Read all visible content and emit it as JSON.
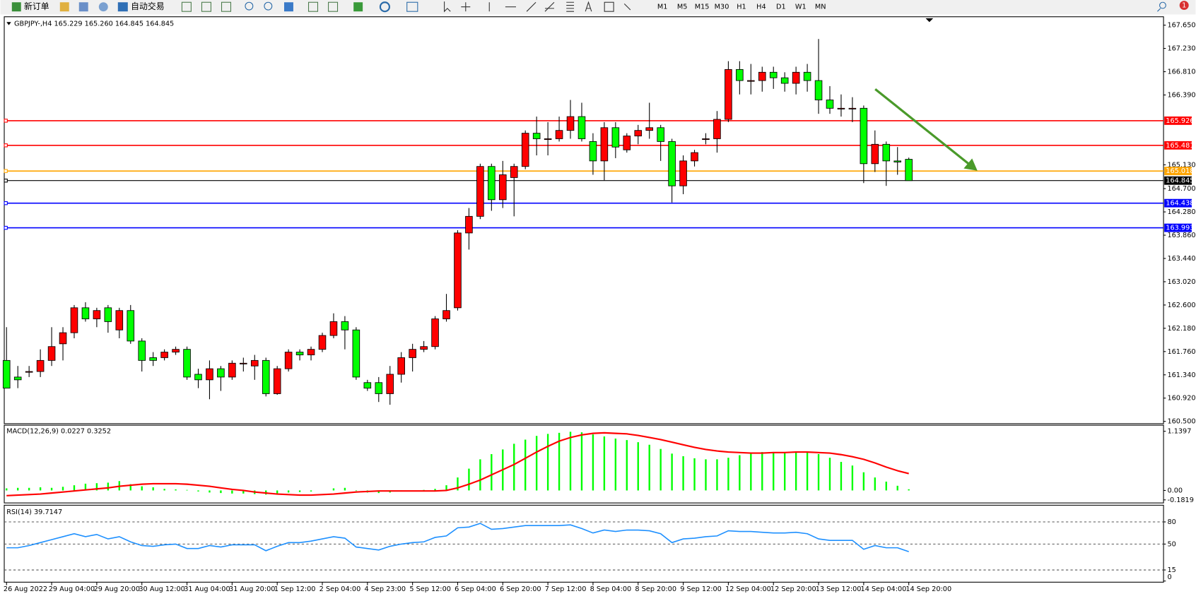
{
  "toolbar": {
    "new_order": "新订单",
    "auto_trading": "自动交易",
    "timeframes": [
      "M1",
      "M5",
      "M15",
      "M30",
      "H1",
      "H4",
      "D1",
      "W1",
      "MN"
    ],
    "badge": "1"
  },
  "chart_data": [
    {
      "type": "candlestick",
      "title": "GBPJPY-,H4  165.229 165.260 164.845 164.845",
      "up_color": "#ff0000",
      "down_color": "#00ff00",
      "categories": [
        "26 Aug 2022",
        null,
        null,
        null,
        "29 Aug 04:00",
        null,
        null,
        null,
        "29 Aug 20:00",
        null,
        null,
        null,
        "30 Aug 12:00",
        null,
        null,
        null,
        "31 Aug 04:00",
        null,
        null,
        null,
        "31 Aug 20:00",
        null,
        null,
        null,
        "1 Sep 12:00",
        null,
        null,
        null,
        "2 Sep 04:00",
        null,
        null,
        null,
        "4 Sep 23:00",
        null,
        null,
        null,
        "5 Sep 12:00",
        null,
        null,
        null,
        "6 Sep 04:00",
        null,
        null,
        null,
        "6 Sep 20:00",
        null,
        null,
        null,
        "7 Sep 12:00",
        null,
        null,
        null,
        "8 Sep 04:00",
        null,
        null,
        null,
        "8 Sep 20:00",
        null,
        null,
        null,
        "9 Sep 12:00",
        null,
        null,
        null,
        "12 Sep 04:00",
        null,
        null,
        null,
        "12 Sep 20:00",
        null,
        null,
        null,
        "13 Sep 12:00",
        null,
        null,
        null,
        "14 Sep 04:00",
        null,
        null,
        null,
        "14 Sep 20:00"
      ],
      "open": [
        161.6,
        161.3,
        161.4,
        161.4,
        161.6,
        161.9,
        162.1,
        162.55,
        162.35,
        162.55,
        162.15,
        162.5,
        161.95,
        161.65,
        161.65,
        161.75,
        161.8,
        161.35,
        161.25,
        161.45,
        161.3,
        161.55,
        161.5,
        161.6,
        161.0,
        161.45,
        161.75,
        161.7,
        161.8,
        162.05,
        162.3,
        162.15,
        161.2,
        161.2,
        161.0,
        161.35,
        161.65,
        161.8,
        161.85,
        162.35,
        162.55,
        163.9,
        164.2,
        165.1,
        164.5,
        164.9,
        165.1,
        165.7,
        165.6,
        165.6,
        165.75,
        166.0,
        165.55,
        165.2,
        165.8,
        165.4,
        165.65,
        165.75,
        165.8,
        165.55,
        164.75,
        165.2,
        165.6,
        165.6,
        165.95,
        166.85,
        166.65,
        166.65,
        166.8,
        166.7,
        166.6,
        166.8,
        166.65,
        166.3,
        166.15,
        166.15,
        166.15,
        165.15,
        165.5,
        165.2,
        165.229
      ],
      "high": [
        162.2,
        161.5,
        161.5,
        161.8,
        162.2,
        162.2,
        162.6,
        162.65,
        162.55,
        162.6,
        162.55,
        162.6,
        162.0,
        161.75,
        161.8,
        161.85,
        161.85,
        161.45,
        161.6,
        161.5,
        161.6,
        161.65,
        161.7,
        161.65,
        161.5,
        161.8,
        161.8,
        161.85,
        162.1,
        162.45,
        162.4,
        162.2,
        161.25,
        161.3,
        161.5,
        161.75,
        161.9,
        161.95,
        162.4,
        162.8,
        163.95,
        164.35,
        165.15,
        165.15,
        165.2,
        165.15,
        165.75,
        166.0,
        165.9,
        166.0,
        166.3,
        166.25,
        165.7,
        165.9,
        165.9,
        165.7,
        165.85,
        166.25,
        165.85,
        165.6,
        165.3,
        165.4,
        165.7,
        166.1,
        167.0,
        167.0,
        166.95,
        166.9,
        166.9,
        166.8,
        166.9,
        166.95,
        167.4,
        166.55,
        166.4,
        166.35,
        166.2,
        165.75,
        165.55,
        165.45,
        165.26
      ],
      "low": [
        161.1,
        161.1,
        161.3,
        161.3,
        161.5,
        161.6,
        162.0,
        162.3,
        162.2,
        162.1,
        162.0,
        161.9,
        161.4,
        161.5,
        161.6,
        161.7,
        161.25,
        161.1,
        160.9,
        161.05,
        161.25,
        161.4,
        161.25,
        160.95,
        160.98,
        161.4,
        161.6,
        161.6,
        161.75,
        162.0,
        161.8,
        161.25,
        161.05,
        160.85,
        160.8,
        161.2,
        161.4,
        161.75,
        161.8,
        162.3,
        162.5,
        163.6,
        164.15,
        164.3,
        164.35,
        164.2,
        165.05,
        165.3,
        165.3,
        165.55,
        165.6,
        165.55,
        164.95,
        164.85,
        165.25,
        165.35,
        165.5,
        165.6,
        165.2,
        164.45,
        164.6,
        165.1,
        165.5,
        165.35,
        165.9,
        166.4,
        166.4,
        166.45,
        166.5,
        166.45,
        166.4,
        166.45,
        166.05,
        166.05,
        166.0,
        165.9,
        164.8,
        165.0,
        164.75,
        164.95,
        164.845
      ],
      "close": [
        161.1,
        161.25,
        161.4,
        161.6,
        161.85,
        162.1,
        162.55,
        162.35,
        162.5,
        162.3,
        162.5,
        161.95,
        161.6,
        161.6,
        161.75,
        161.8,
        161.3,
        161.25,
        161.45,
        161.3,
        161.55,
        161.55,
        161.6,
        161.0,
        161.45,
        161.75,
        161.7,
        161.8,
        162.05,
        162.3,
        162.15,
        161.3,
        161.1,
        161.0,
        161.35,
        161.65,
        161.8,
        161.85,
        162.35,
        162.5,
        163.9,
        164.2,
        165.1,
        164.5,
        164.95,
        165.1,
        165.7,
        165.6,
        165.6,
        165.75,
        166.0,
        165.6,
        165.2,
        165.8,
        165.45,
        165.65,
        165.75,
        165.8,
        165.55,
        164.75,
        165.2,
        165.35,
        165.6,
        165.95,
        166.85,
        166.65,
        166.65,
        166.8,
        166.7,
        166.6,
        166.8,
        166.65,
        166.3,
        166.15,
        166.15,
        166.15,
        165.15,
        165.5,
        165.2,
        165.18,
        164.845
      ],
      "ylim": [
        160.5,
        167.65
      ],
      "yticks": [
        {
          "value": 160.5,
          "label": "160.500"
        },
        {
          "value": 160.92,
          "label": "160.920"
        },
        {
          "value": 161.34,
          "label": "161.340"
        },
        {
          "value": 161.76,
          "label": "161.760"
        },
        {
          "value": 162.18,
          "label": "162.180"
        },
        {
          "value": 162.6,
          "label": "162.600"
        },
        {
          "value": 163.02,
          "label": "163.020"
        },
        {
          "value": 163.44,
          "label": "163.440"
        },
        {
          "value": 163.86,
          "label": "163.860"
        },
        {
          "value": 164.28,
          "label": "164.280"
        },
        {
          "value": 164.7,
          "label": "164.700"
        },
        {
          "value": 165.13,
          "label": "165.130"
        },
        {
          "value": 166.39,
          "label": "166.390"
        },
        {
          "value": 166.81,
          "label": "166.810"
        },
        {
          "value": 167.23,
          "label": "167.230"
        },
        {
          "value": 167.65,
          "label": "167.650"
        }
      ],
      "levels": [
        {
          "value": 165.926,
          "color": "#ff0000"
        },
        {
          "value": 165.481,
          "color": "#ff0000"
        },
        {
          "value": 165.018,
          "color": "#ffa500"
        },
        {
          "value": 164.438,
          "color": "#0000ff"
        },
        {
          "value": 163.993,
          "color": "#0000ff"
        },
        {
          "value": 164.845,
          "color": "#000000"
        }
      ]
    },
    {
      "type": "macd",
      "title": "MACD(12,26,9) 0.0227 0.3252",
      "histogram": {
        "color": "#00ff00",
        "values": [
          0.04,
          0.05,
          0.05,
          0.06,
          0.05,
          0.07,
          0.1,
          0.13,
          0.14,
          0.15,
          0.18,
          0.12,
          0.08,
          0.06,
          0.03,
          0.02,
          0.01,
          -0.02,
          -0.04,
          -0.05,
          -0.06,
          -0.06,
          -0.07,
          -0.08,
          -0.06,
          -0.04,
          -0.03,
          -0.02,
          0.0,
          0.04,
          0.05,
          -0.01,
          -0.04,
          -0.05,
          -0.04,
          -0.02,
          0.0,
          0.01,
          0.03,
          0.1,
          0.25,
          0.42,
          0.6,
          0.7,
          0.79,
          0.9,
          0.98,
          1.05,
          1.09,
          1.11,
          1.13,
          1.12,
          1.08,
          1.04,
          1.0,
          0.97,
          0.93,
          0.88,
          0.8,
          0.71,
          0.66,
          0.62,
          0.6,
          0.6,
          0.63,
          0.68,
          0.72,
          0.74,
          0.74,
          0.73,
          0.75,
          0.75,
          0.7,
          0.63,
          0.55,
          0.48,
          0.35,
          0.25,
          0.17,
          0.09,
          0.0227
        ]
      },
      "signal": {
        "color": "#ff0000",
        "values": [
          -0.1,
          -0.09,
          -0.08,
          -0.07,
          -0.05,
          -0.03,
          -0.01,
          0.01,
          0.03,
          0.05,
          0.08,
          0.1,
          0.12,
          0.13,
          0.13,
          0.13,
          0.12,
          0.1,
          0.08,
          0.05,
          0.02,
          0.0,
          -0.03,
          -0.05,
          -0.07,
          -0.08,
          -0.09,
          -0.09,
          -0.08,
          -0.07,
          -0.05,
          -0.03,
          -0.02,
          -0.01,
          -0.01,
          -0.01,
          -0.01,
          -0.01,
          -0.01,
          0.0,
          0.05,
          0.12,
          0.2,
          0.3,
          0.4,
          0.5,
          0.62,
          0.74,
          0.85,
          0.95,
          1.02,
          1.07,
          1.1,
          1.11,
          1.1,
          1.09,
          1.06,
          1.02,
          0.98,
          0.93,
          0.88,
          0.83,
          0.79,
          0.76,
          0.74,
          0.73,
          0.72,
          0.72,
          0.73,
          0.73,
          0.74,
          0.74,
          0.73,
          0.72,
          0.69,
          0.65,
          0.6,
          0.53,
          0.45,
          0.38,
          0.3252
        ]
      },
      "ylim": [
        -0.1819,
        1.1397
      ],
      "yticks": [
        1.1397,
        {
          "value": 0,
          "label": "0.00"
        },
        -0.1819
      ]
    },
    {
      "type": "line",
      "title": "RSI(14) 39.7147",
      "color": "#1e90ff",
      "values": [
        45,
        45,
        48,
        52,
        56,
        60,
        64,
        60,
        63,
        57,
        60,
        53,
        48,
        47,
        49,
        50,
        44,
        44,
        48,
        46,
        49,
        49,
        49,
        41,
        47,
        52,
        52,
        54,
        57,
        60,
        58,
        46,
        44,
        42,
        47,
        50,
        52,
        53,
        59,
        61,
        72,
        73,
        78,
        70,
        71,
        73,
        75,
        75,
        75,
        75,
        76,
        71,
        65,
        69,
        67,
        69,
        69,
        68,
        64,
        52,
        57,
        58,
        60,
        61,
        68,
        67,
        67,
        66,
        65,
        65,
        66,
        64,
        57,
        55,
        55,
        55,
        43,
        48,
        45,
        45,
        39.7147
      ],
      "ylim": [
        0,
        100
      ],
      "yticks": [
        80,
        50,
        15,
        0
      ]
    }
  ]
}
